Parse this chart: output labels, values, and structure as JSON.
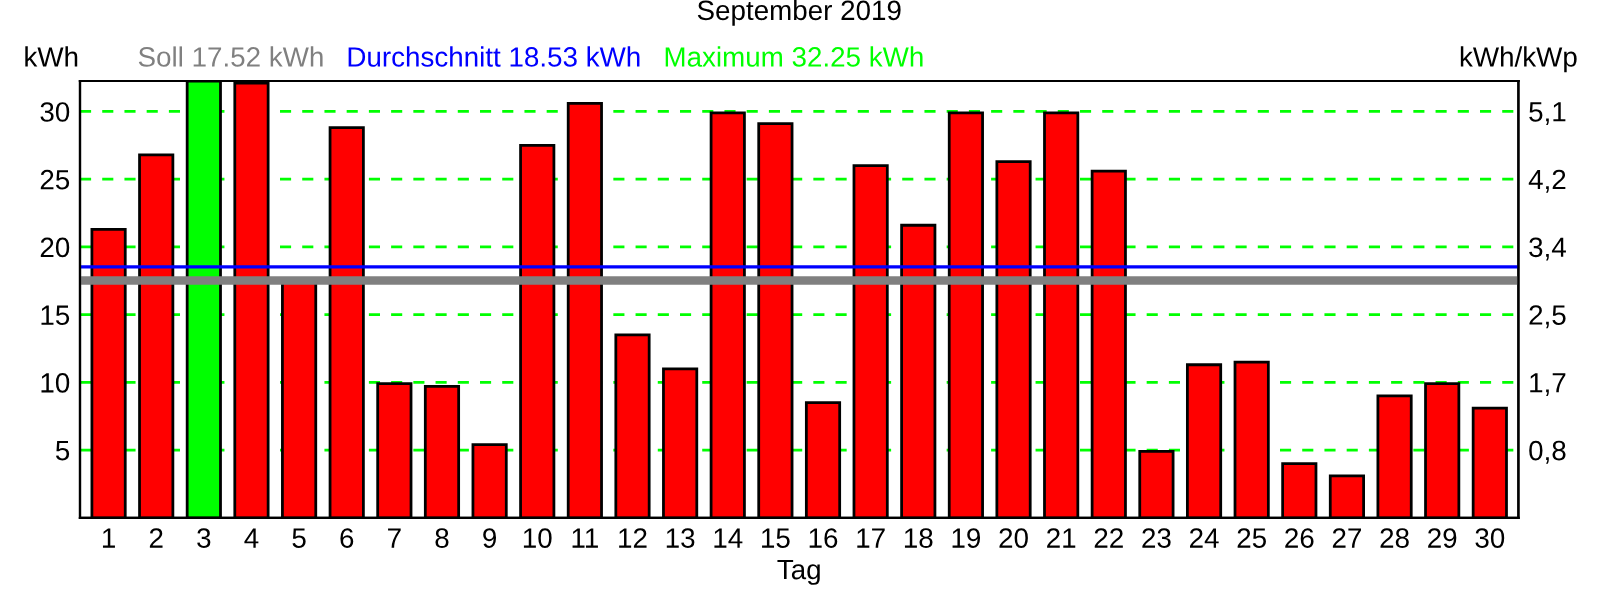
{
  "chart_data": {
    "type": "bar",
    "title": "September 2019",
    "xlabel": "Tag",
    "ylabel": "kWh",
    "y2label": "kWh/kWp",
    "categories": [
      "1",
      "2",
      "3",
      "4",
      "5",
      "6",
      "7",
      "8",
      "9",
      "10",
      "11",
      "12",
      "13",
      "14",
      "15",
      "16",
      "17",
      "18",
      "19",
      "20",
      "21",
      "22",
      "23",
      "24",
      "25",
      "26",
      "27",
      "28",
      "29",
      "30"
    ],
    "values": [
      21.3,
      26.8,
      32.25,
      32.1,
      17.4,
      28.8,
      9.9,
      9.7,
      5.4,
      27.5,
      30.6,
      13.5,
      11.0,
      29.9,
      29.1,
      8.5,
      26.0,
      21.6,
      29.9,
      26.3,
      29.9,
      25.6,
      4.9,
      11.3,
      11.5,
      4.0,
      3.1,
      9.0,
      9.9,
      8.1
    ],
    "colors": [
      "#ff0000",
      "#ff0000",
      "#00ff00",
      "#ff0000",
      "#ff0000",
      "#ff0000",
      "#ff0000",
      "#ff0000",
      "#ff0000",
      "#ff0000",
      "#ff0000",
      "#ff0000",
      "#ff0000",
      "#ff0000",
      "#ff0000",
      "#ff0000",
      "#ff0000",
      "#ff0000",
      "#ff0000",
      "#ff0000",
      "#ff0000",
      "#ff0000",
      "#ff0000",
      "#ff0000",
      "#ff0000",
      "#ff0000",
      "#ff0000",
      "#ff0000",
      "#ff0000",
      "#ff0000"
    ],
    "ylim": [
      0,
      32.25
    ],
    "yticks": [
      5,
      10,
      15,
      20,
      25,
      30
    ],
    "y2lim": [
      0,
      5.48
    ],
    "y2ticks": [
      {
        "value": 0.85,
        "label": "0,8"
      },
      {
        "value": 1.7,
        "label": "1,7"
      },
      {
        "value": 2.55,
        "label": "2,5"
      },
      {
        "value": 3.4,
        "label": "3,4"
      },
      {
        "value": 4.25,
        "label": "4,2"
      },
      {
        "value": 5.1,
        "label": "5,1"
      }
    ],
    "ref_lines": [
      {
        "axis": "y",
        "value": 17.52,
        "label": "Soll 17.52 kWh",
        "color": "#808080"
      },
      {
        "axis": "y",
        "value": 18.53,
        "label": "Durchschnitt 18.53 kWh",
        "color": "#0000ff"
      }
    ],
    "annotations": [
      "Maximum 32.25 kWh"
    ],
    "grid": "y",
    "legend": false
  }
}
